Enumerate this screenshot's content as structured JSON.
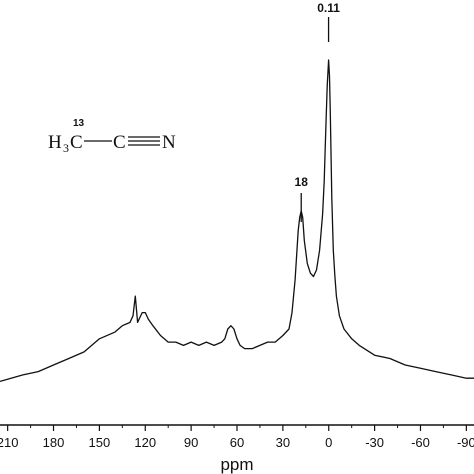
{
  "chart_data": {
    "type": "line",
    "title": "",
    "xlabel": "ppm",
    "ylabel": "",
    "xlim": [
      215,
      -95
    ],
    "x_reversed": true,
    "grid": false,
    "ticks": [
      210,
      180,
      150,
      120,
      90,
      60,
      30,
      0,
      -30,
      -60,
      -90
    ],
    "tick_labels": [
      "210",
      "180",
      "150",
      "120",
      "90",
      "60",
      "30",
      "0",
      "-30",
      "-60",
      "-90"
    ],
    "series": [
      {
        "x": [
          215,
          200,
          190,
          180,
          170,
          160,
          150,
          140,
          135,
          130,
          128,
          126.5,
          125,
          124,
          122,
          120,
          118,
          115,
          110,
          105,
          100,
          95,
          90,
          85,
          80,
          75,
          70,
          68,
          66,
          64,
          62,
          60,
          58,
          55,
          50,
          45,
          40,
          35,
          30,
          26,
          24,
          22,
          20,
          19,
          18,
          17,
          16,
          14,
          12,
          10,
          8,
          6,
          4,
          3,
          2,
          1,
          0.11,
          -0.5,
          -1,
          -2,
          -3,
          -4,
          -5,
          -7,
          -10,
          -15,
          -20,
          -30,
          -40,
          -50,
          -60,
          -70,
          -80,
          -90,
          -95
        ],
        "y": [
          0.02,
          0.04,
          0.05,
          0.07,
          0.09,
          0.11,
          0.15,
          0.17,
          0.19,
          0.2,
          0.22,
          0.28,
          0.2,
          0.21,
          0.23,
          0.23,
          0.21,
          0.19,
          0.16,
          0.14,
          0.14,
          0.13,
          0.14,
          0.13,
          0.14,
          0.13,
          0.14,
          0.15,
          0.18,
          0.19,
          0.18,
          0.15,
          0.13,
          0.12,
          0.12,
          0.13,
          0.14,
          0.14,
          0.16,
          0.18,
          0.23,
          0.33,
          0.48,
          0.52,
          0.54,
          0.52,
          0.45,
          0.38,
          0.35,
          0.34,
          0.36,
          0.42,
          0.53,
          0.63,
          0.78,
          0.92,
          1.0,
          0.95,
          0.84,
          0.58,
          0.42,
          0.34,
          0.28,
          0.22,
          0.18,
          0.15,
          0.13,
          0.1,
          0.09,
          0.07,
          0.06,
          0.05,
          0.04,
          0.03,
          0.03
        ]
      }
    ],
    "annotations": [
      {
        "text": "0.11",
        "x": 0.11
      },
      {
        "text": "18",
        "x": 18
      }
    ]
  },
  "structure": {
    "isotope": "13",
    "left": "H",
    "sub": "3",
    "carbon": "C",
    "right": "C",
    "nitrogen": "N"
  }
}
